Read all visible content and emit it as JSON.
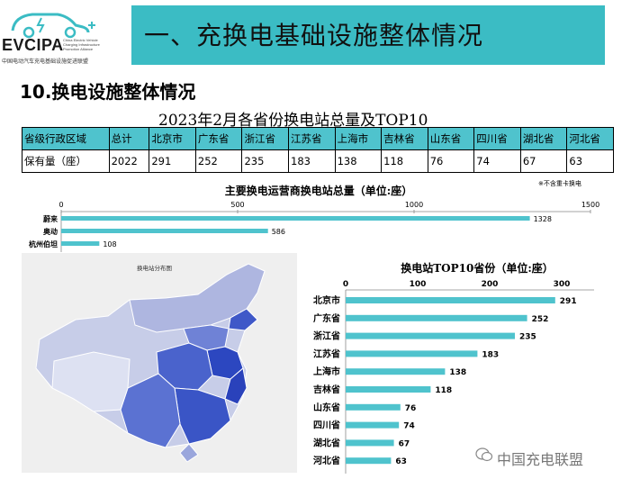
{
  "logo": {
    "name": "EVCIPA",
    "english_lines": [
      "China Electric Vehicle",
      "Charging Infrastructure",
      "Promotion Alliance"
    ],
    "chinese": "中国电动汽车充电基础设施促进联盟"
  },
  "header": {
    "title": "一、充换电基础设施整体情况"
  },
  "section": {
    "title": "10.换电设施整体情况"
  },
  "table": {
    "title": "2023年2月各省份换电站总量及TOP10",
    "header": [
      "省级行政区域",
      "总计",
      "北京市",
      "广东省",
      "浙江省",
      "江苏省",
      "上海市",
      "吉林省",
      "山东省",
      "四川省",
      "湖北省",
      "河北省"
    ],
    "row": [
      "保有量（座）",
      "2022",
      "291",
      "252",
      "235",
      "183",
      "138",
      "118",
      "76",
      "74",
      "67",
      "63"
    ]
  },
  "note": "※不含重卡换电",
  "map": {
    "title": "换电站分布图"
  },
  "watermark": "中国充电联盟",
  "chart_data": [
    {
      "type": "bar",
      "orientation": "horizontal",
      "title": "主要换电运营商换电站总量（单位:座）",
      "categories": [
        "蔚来",
        "奥动",
        "杭州伯坦"
      ],
      "values": [
        1328,
        586,
        108
      ],
      "xlim": [
        0,
        1500
      ],
      "xticks": [
        0,
        500,
        1000,
        1500
      ],
      "color": "#4fc3cd"
    },
    {
      "type": "bar",
      "orientation": "horizontal",
      "title": "换电站TOP10省份（单位:座）",
      "categories": [
        "北京市",
        "广东省",
        "浙江省",
        "江苏省",
        "上海市",
        "吉林省",
        "山东省",
        "四川省",
        "湖北省",
        "河北省"
      ],
      "values": [
        291,
        252,
        235,
        183,
        138,
        118,
        76,
        74,
        67,
        63
      ],
      "xlim": [
        0,
        300
      ],
      "xticks": [
        0,
        100,
        200,
        300
      ],
      "color": "#4fc3cd"
    }
  ]
}
